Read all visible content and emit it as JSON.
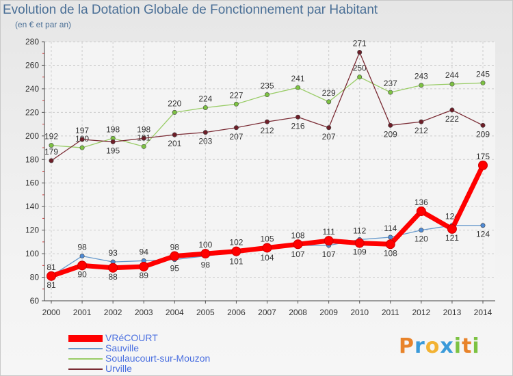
{
  "title": "Evolution de la Dotation Globale de Fonctionnement par Habitant",
  "subtitle": "(en € et par an)",
  "logo": {
    "p": "P",
    "r": "r",
    "o": "o",
    "x": "x",
    "i1": "i",
    "t": "t",
    "i2": "i"
  },
  "chart_data": {
    "type": "line",
    "x": [
      "2000",
      "2001",
      "2002",
      "2003",
      "2004",
      "2005",
      "2006",
      "2007",
      "2008",
      "2009",
      "2010",
      "2011",
      "2012",
      "2013",
      "2014"
    ],
    "ylim": [
      60,
      280
    ],
    "yticks": [
      60,
      80,
      100,
      120,
      140,
      160,
      180,
      200,
      220,
      240,
      260,
      280
    ],
    "grid": true,
    "legend_position": "bottom-left",
    "series": [
      {
        "name": "Soulaucourt-sur-Mouzon",
        "color": "#99cc66",
        "point": "#7dc243",
        "width": 1.3,
        "values": [
          192,
          190,
          198,
          191,
          220,
          224,
          227,
          235,
          241,
          229,
          250,
          237,
          243,
          244,
          245
        ],
        "labels": [
          "192",
          "190",
          "198",
          "191",
          "220",
          "224",
          "227",
          "235",
          "241",
          "229",
          "250",
          "237",
          "243",
          "244",
          "245"
        ]
      },
      {
        "name": "Urville",
        "color": "#7a2b34",
        "point": "#6e1e28",
        "width": 1.3,
        "values": [
          179,
          197,
          195,
          198,
          201,
          203,
          207,
          212,
          216,
          207,
          271,
          209,
          212,
          222,
          209
        ],
        "labels": [
          "179",
          "197",
          "195",
          "198",
          "201",
          "203",
          "207",
          "212",
          "216",
          "207",
          "271",
          "209",
          "212",
          "222",
          "209"
        ]
      },
      {
        "name": "Sauville",
        "color": "#6699cc",
        "point": "#4f8bd6",
        "width": 1.3,
        "values": [
          81,
          98,
          93,
          94,
          95,
          98,
          101,
          104,
          107,
          107,
          112,
          114,
          120,
          124,
          124
        ],
        "labels": [
          "81",
          "98",
          "93",
          "94",
          "95",
          "98",
          "101",
          "104",
          "107",
          "107",
          "112",
          "114",
          "120",
          "124",
          "124"
        ]
      },
      {
        "name": "VRéCOURT",
        "color": "#ff0000",
        "point": "#ff0000",
        "width": 7,
        "values": [
          81,
          90,
          88,
          89,
          98,
          100,
          102,
          105,
          108,
          111,
          109,
          108,
          136,
          121,
          175
        ],
        "labels": [
          "81",
          "90",
          "88",
          "89",
          "98",
          "100",
          "102",
          "105",
          "108",
          "111",
          "109",
          "108",
          "136",
          "121",
          "175"
        ]
      }
    ]
  }
}
